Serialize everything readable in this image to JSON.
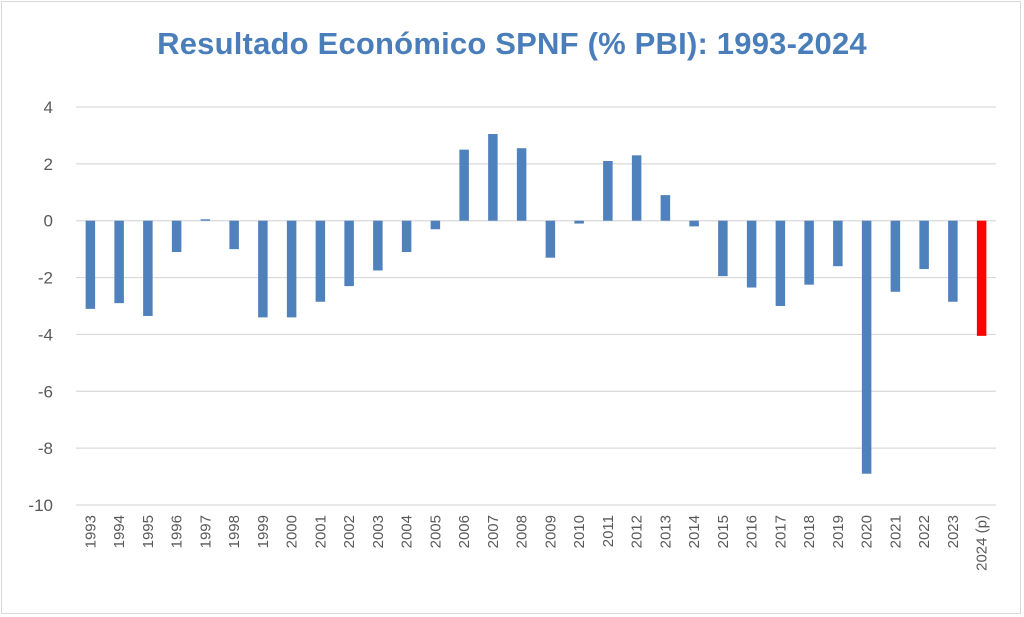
{
  "chart_data": {
    "type": "bar",
    "title": "Resultado Económico SPNF (% PBI): 1993-2024",
    "xlabel": "",
    "ylabel": "",
    "ylim": [
      -10,
      4
    ],
    "yticks": [
      4,
      2,
      0,
      -2,
      -4,
      -6,
      -8,
      -10
    ],
    "grid": true,
    "categories": [
      "1993",
      "1994",
      "1995",
      "1996",
      "1997",
      "1998",
      "1999",
      "2000",
      "2001",
      "2002",
      "2003",
      "2004",
      "2005",
      "2006",
      "2007",
      "2008",
      "2009",
      "2010",
      "2011",
      "2012",
      "2013",
      "2014",
      "2015",
      "2016",
      "2017",
      "2018",
      "2019",
      "2020",
      "2021",
      "2022",
      "2023",
      "2024 (p)"
    ],
    "values": [
      -3.1,
      -2.9,
      -3.35,
      -1.1,
      0.05,
      -1.0,
      -3.4,
      -3.4,
      -2.85,
      -2.3,
      -1.75,
      -1.1,
      -0.3,
      2.5,
      3.05,
      2.55,
      -1.3,
      -0.1,
      2.1,
      2.3,
      0.9,
      -0.2,
      -1.95,
      -2.35,
      -3.0,
      -2.25,
      -1.6,
      -8.9,
      -2.5,
      -1.7,
      -2.85,
      -4.05
    ],
    "colors": {
      "default": "#4f81bd",
      "highlight": "#ff0000"
    },
    "highlight_category": "2024 (p)"
  }
}
